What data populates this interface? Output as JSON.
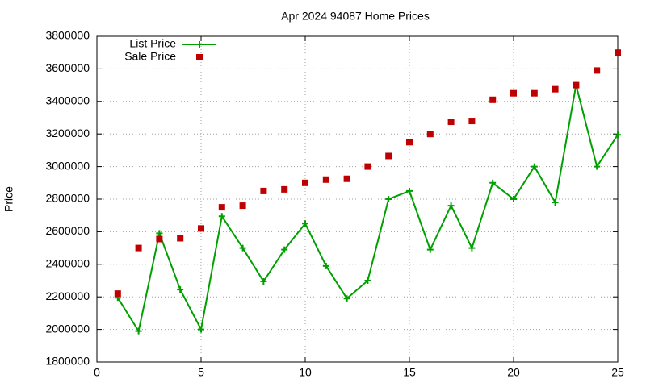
{
  "chart_data": {
    "type": "line",
    "title": "Apr 2024 94087 Home Prices",
    "y_label": "Price",
    "x": [
      1,
      2,
      3,
      4,
      5,
      6,
      7,
      8,
      9,
      10,
      11,
      12,
      13,
      14,
      15,
      16,
      17,
      18,
      19,
      20,
      21,
      22,
      23,
      24,
      25
    ],
    "series": [
      {
        "name": "List Price",
        "color": "#00a000",
        "style": "linespoints",
        "values": [
          2195000,
          1990000,
          2590000,
          2245000,
          2000000,
          2695000,
          2500000,
          2295000,
          2490000,
          2650000,
          2390000,
          2190000,
          2300000,
          2800000,
          2850000,
          2490000,
          2760000,
          2500000,
          2900000,
          2800000,
          3000000,
          2780000,
          3500000,
          3000000,
          3195000
        ]
      },
      {
        "name": "Sale Price",
        "color": "#c00000",
        "style": "points",
        "values": [
          2220000,
          2500000,
          2555000,
          2560000,
          2620000,
          2750000,
          2760000,
          2850000,
          2860000,
          2900000,
          2920000,
          2925000,
          3000000,
          3065000,
          3150000,
          3200000,
          3275000,
          3280000,
          3410000,
          3450000,
          3450000,
          3475000,
          3500000,
          3590000,
          3700000
        ]
      }
    ],
    "xlim": [
      0,
      25
    ],
    "xticks": [
      0,
      5,
      10,
      15,
      20,
      25
    ],
    "ylim": [
      1800000,
      3800000
    ],
    "yticks": [
      1800000,
      2000000,
      2200000,
      2400000,
      2600000,
      2800000,
      3000000,
      3200000,
      3400000,
      3600000,
      3800000
    ],
    "grid": true,
    "legend": "top-left"
  }
}
